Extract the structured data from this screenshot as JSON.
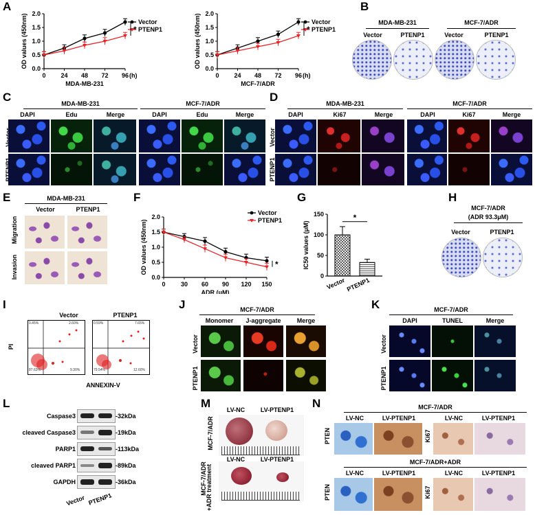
{
  "panels": {
    "A": "A",
    "B": "B",
    "C": "C",
    "D": "D",
    "E": "E",
    "F": "F",
    "G": "G",
    "H": "H",
    "I": "I",
    "J": "J",
    "K": "K",
    "L": "L",
    "M": "M",
    "N": "N"
  },
  "chart_data": [
    {
      "id": "A1",
      "type": "line",
      "xlabel": "(h)",
      "ylabel": "OD values (450nm)",
      "subtitle": "MDA-MB-231",
      "x": [
        0,
        24,
        48,
        72,
        96
      ],
      "xlim": [
        0,
        96
      ],
      "ylim": [
        0,
        2.0
      ],
      "yticks": [
        "0.0",
        "0.5",
        "1.0",
        "1.5",
        "2.0"
      ],
      "series": [
        {
          "name": "Vector",
          "values": [
            0.5,
            0.75,
            1.1,
            1.3,
            1.7
          ],
          "err": [
            0.12,
            0.12,
            0.13,
            0.13,
            0.12
          ],
          "color": "#000000"
        },
        {
          "name": "PTENP1",
          "values": [
            0.5,
            0.65,
            0.85,
            1.0,
            1.2
          ],
          "err": [
            0.12,
            0.12,
            0.12,
            0.13,
            0.12
          ],
          "color": "#e8262a"
        }
      ],
      "annotation": "*"
    },
    {
      "id": "A2",
      "type": "line",
      "xlabel": "(h)",
      "ylabel": "OD values (450nm)",
      "subtitle": "MCF-7/ADR",
      "x": [
        0,
        24,
        48,
        72,
        96
      ],
      "xlim": [
        0,
        96
      ],
      "ylim": [
        0,
        2.0
      ],
      "yticks": [
        "0.0",
        "0.5",
        "1.0",
        "1.5",
        "2.0"
      ],
      "series": [
        {
          "name": "Vector",
          "values": [
            0.5,
            0.75,
            1.0,
            1.25,
            1.7
          ],
          "err": [
            0.12,
            0.12,
            0.13,
            0.12,
            0.12
          ],
          "color": "#000000"
        },
        {
          "name": "PTENP1",
          "values": [
            0.5,
            0.65,
            0.8,
            0.95,
            1.2
          ],
          "err": [
            0.12,
            0.12,
            0.12,
            0.12,
            0.12
          ],
          "color": "#e8262a"
        }
      ],
      "annotation": "*"
    },
    {
      "id": "F",
      "type": "line",
      "xlabel": "ADR (μM)",
      "ylabel": "OD values (450nm)",
      "x": [
        0,
        30,
        60,
        90,
        120,
        150
      ],
      "xlim": [
        0,
        150
      ],
      "ylim": [
        0,
        2.0
      ],
      "yticks": [
        "0.0",
        "0.5",
        "1.0",
        "1.5",
        "2.0"
      ],
      "series": [
        {
          "name": "Vector",
          "values": [
            1.5,
            1.35,
            1.2,
            0.85,
            0.65,
            0.55
          ],
          "err": [
            0.1,
            0.1,
            0.12,
            0.12,
            0.12,
            0.12
          ],
          "color": "#000000"
        },
        {
          "name": "PTENP1",
          "values": [
            1.5,
            1.25,
            0.95,
            0.65,
            0.5,
            0.35
          ],
          "err": [
            0.1,
            0.1,
            0.12,
            0.12,
            0.12,
            0.12
          ],
          "color": "#e8262a"
        }
      ],
      "annotation": "*"
    },
    {
      "id": "G",
      "type": "bar",
      "ylabel": "IC50 values (μM)",
      "categories": [
        "Vector",
        "PTENP1"
      ],
      "values": [
        100,
        33
      ],
      "err": [
        20,
        8
      ],
      "ylim": [
        0,
        150
      ],
      "yticks": [
        "0",
        "50",
        "100",
        "150"
      ],
      "annotation": "*"
    }
  ],
  "A": {
    "legend_vector": "Vector",
    "legend_ptenp1": "PTENP1",
    "h_unit": "(h)",
    "star": "*",
    "sub1": "MDA-MB-231",
    "sub2": "MCF-7/ADR"
  },
  "B": {
    "cell1": "MDA-MB-231",
    "cell2": "MCF-7/ADR",
    "vector": "Vector",
    "ptenp1": "PTENP1"
  },
  "C": {
    "cell1": "MDA-MB-231",
    "cell2": "MCF-7/ADR",
    "dapi": "DAPI",
    "edu": "Edu",
    "merge": "Merge",
    "row_vector": "Vector",
    "row_ptenp1": "PTENP1"
  },
  "D": {
    "cell1": "MDA-MB-231",
    "cell2": "MCF-7/ADR",
    "dapi": "DAPI",
    "ki67": "Ki67",
    "merge": "Merge",
    "row_vector": "Vector",
    "row_ptenp1": "PTENP1"
  },
  "E": {
    "cell": "MDA-MB-231",
    "vector": "Vector",
    "ptenp1": "PTENP1",
    "migration": "Migration",
    "invasion": "Invasion"
  },
  "F": {
    "legend_vector": "Vector",
    "legend_ptenp1": "PTENP1",
    "star": "*"
  },
  "G": {
    "star": "*"
  },
  "H": {
    "title": "MCF-7/ADR",
    "subtitle": "(ADR 93.3μM)",
    "vector": "Vector",
    "ptenp1": "PTENP1"
  },
  "I": {
    "vector": "Vector",
    "ptenp1": "PTENP1",
    "ylabel": "PI",
    "xlabel": "ANNEXIN-V",
    "v_q1": "0.45%",
    "v_q2": "2.60%",
    "v_q3": "87.63%",
    "v_q4": "9.30%",
    "p_q1": "0.59%",
    "p_q2": "7.65%",
    "p_q3": "79.54%",
    "p_q4": "12.60%"
  },
  "J": {
    "cell": "MCF-7/ADR",
    "monomer": "Monomer",
    "jagg": "J-aggregate",
    "merge": "Merge",
    "row_vector": "Vector",
    "row_ptenp1": "PTENP1"
  },
  "K": {
    "cell": "MCF-7/ADR",
    "dapi": "DAPI",
    "tunel": "TUNEL",
    "merge": "Merge",
    "row_vector": "Vector",
    "row_ptenp1": "PTENP1"
  },
  "L": {
    "rows": [
      {
        "name": "Caspase3",
        "kda": "-32kDa"
      },
      {
        "name": "cleaved Caspase3",
        "kda": "-19kDa"
      },
      {
        "name": "PARP1",
        "kda": "-113kDa"
      },
      {
        "name": "cleaved PARP1",
        "kda": "-89kDa"
      },
      {
        "name": "GAPDH",
        "kda": "-36kDa"
      }
    ],
    "col_vector": "Vector",
    "col_ptenp1": "PTENP1"
  },
  "M": {
    "lvnc": "LV-NC",
    "lvpt": "LV-PTENP1",
    "row1": "MCF-7/ADR",
    "row2a": "MCF-7/ADR",
    "row2b": "+ADR treatment"
  },
  "N": {
    "title1": "MCF-7/ADR",
    "title2": "MCF-7/ADR+ADR",
    "lvnc": "LV-NC",
    "lvpt": "LV-PTENP1",
    "pten": "PTEN",
    "ki67": "Ki67"
  }
}
